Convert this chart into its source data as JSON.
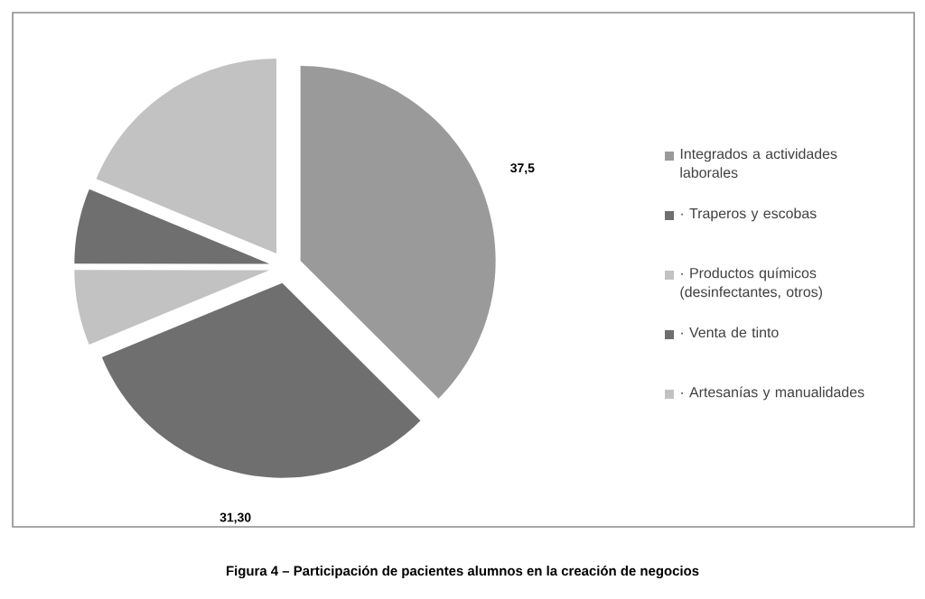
{
  "chart_data": {
    "type": "pie",
    "title": "**Figura 4 – Participación de pacientes alumnos en la creación de negocios**",
    "categories": [
      "Integrados a actividades laborales",
      "· Traperos y escobas",
      "· Productos químicos (desinfectantes, otros)",
      "· Venta de tinto",
      "· Artesanías y manualidades"
    ],
    "values": [
      37.5,
      31.3,
      6.25,
      6.25,
      18.75
    ],
    "value_labels": [
      "37,5",
      "31,30",
      null,
      null,
      null
    ],
    "colors": [
      "#9a9a9a",
      "#6f6f6f",
      "#c2c2c2",
      "#6f6f6f",
      "#c2c2c2"
    ],
    "legend": "right"
  }
}
